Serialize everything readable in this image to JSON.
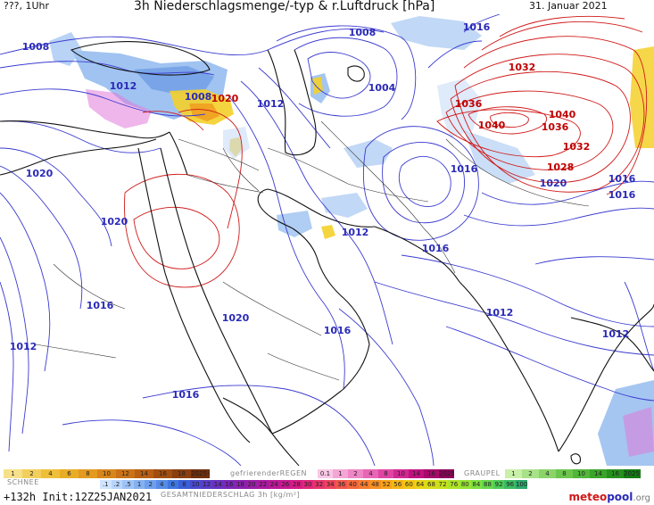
{
  "header": {
    "left": "???, 1Uhr",
    "title": "3h Niederschlagsmenge/-typ & r.Luftdruck [hPa]",
    "date": "31. Januar 2021"
  },
  "colors": {
    "low_isobar": "#3b3bd0",
    "high_isobar": "#d01818",
    "low_label": "#2a2ab8",
    "high_label": "#c00000",
    "coast": "#111111",
    "precip_blue": "#8fb8ee",
    "precip_yellow": "#f4d02a",
    "precip_orange": "#f0a020",
    "precip_magenta": "#e07ad8"
  },
  "pressure_labels": [
    {
      "text": "1008",
      "type": "low"
    },
    {
      "text": "1012",
      "type": "low"
    },
    {
      "text": "1008",
      "type": "low"
    },
    {
      "text": "1020",
      "type": "high"
    },
    {
      "text": "1012",
      "type": "low"
    },
    {
      "text": "1008",
      "type": "low"
    },
    {
      "text": "1004",
      "type": "low"
    },
    {
      "text": "1016",
      "type": "low"
    },
    {
      "text": "1032",
      "type": "high"
    },
    {
      "text": "1036",
      "type": "high"
    },
    {
      "text": "1040",
      "type": "high"
    },
    {
      "text": "1040",
      "type": "high"
    },
    {
      "text": "1036",
      "type": "high"
    },
    {
      "text": "1032",
      "type": "high"
    },
    {
      "text": "1028",
      "type": "high"
    },
    {
      "text": "1020",
      "type": "low"
    },
    {
      "text": "1016",
      "type": "low"
    },
    {
      "text": "1016",
      "type": "low"
    },
    {
      "text": "1016",
      "type": "low"
    },
    {
      "text": "1020",
      "type": "low"
    },
    {
      "text": "1020",
      "type": "low"
    },
    {
      "text": "1012",
      "type": "low"
    },
    {
      "text": "1016",
      "type": "low"
    },
    {
      "text": "1016",
      "type": "low"
    },
    {
      "text": "1020",
      "type": "low"
    },
    {
      "text": "1016",
      "type": "low"
    },
    {
      "text": "1012",
      "type": "low"
    },
    {
      "text": "1012",
      "type": "low"
    },
    {
      "text": "1012",
      "type": "low"
    },
    {
      "text": "1016",
      "type": "low"
    }
  ],
  "legend": {
    "snow_label": "SCHNEE",
    "snow_values": [
      "1",
      "2",
      "4",
      "6",
      "8",
      "10",
      "12",
      "14",
      "16",
      "18",
      "2025+"
    ],
    "freezing_label": "gefrierenderREGEN",
    "freezing_values": [
      "0.1",
      "1",
      "2",
      "4",
      "8",
      "10",
      "14",
      "16",
      "2025+"
    ],
    "graupel_label": "GRAUPEL",
    "graupel_values": [
      "1",
      "2",
      "4",
      "8",
      "10",
      "14",
      "16",
      "2025+"
    ],
    "total_label": "GESAMTNIEDERSCHLAG 3h [kg/m²]",
    "total_values": [
      ".1",
      ".2",
      ".5",
      "1",
      "2",
      "4",
      "6",
      "8",
      "10",
      "12",
      "14",
      "16",
      "18",
      "20",
      "22",
      "24",
      "26",
      "28",
      "30",
      "32",
      "34",
      "36",
      "40",
      "44",
      "48",
      "52",
      "56",
      "60",
      "64",
      "68",
      "72",
      "76",
      "80",
      "84",
      "88",
      "92",
      "96",
      "100"
    ]
  },
  "footer": {
    "init": "+132h Init:12Z25JAN2021",
    "brand_a": "meteo",
    "brand_b": "pool",
    "brand_c": ".org"
  }
}
